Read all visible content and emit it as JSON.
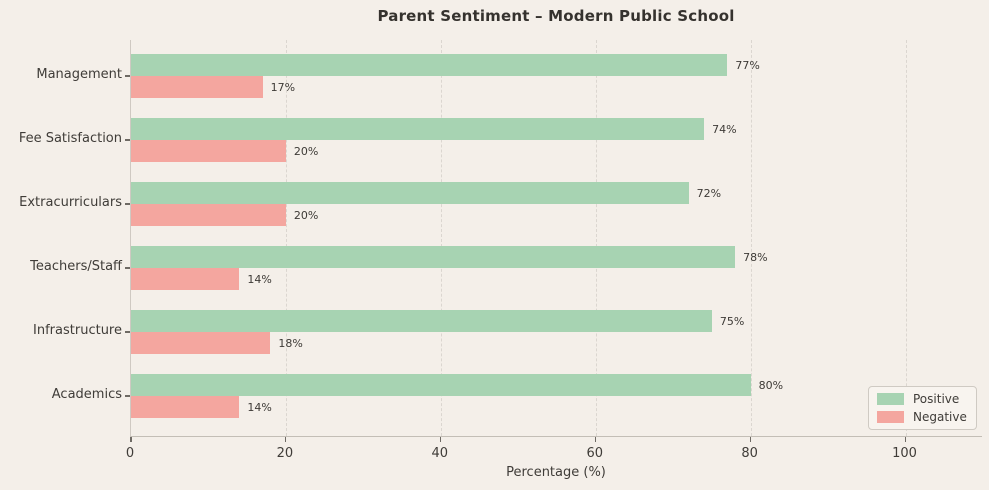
{
  "chart_data": {
    "type": "bar",
    "orientation": "horizontal",
    "title": "Parent Sentiment – Modern Public School",
    "xlabel": "Percentage (%)",
    "categories": [
      "Management",
      "Fee Satisfaction",
      "Extracurriculars",
      "Teachers/Staff",
      "Infrastructure",
      "Academics"
    ],
    "series": [
      {
        "name": "Positive",
        "color": "#a7d3b2",
        "values": [
          77,
          74,
          72,
          78,
          75,
          80
        ]
      },
      {
        "name": "Negative",
        "color": "#f4a69f",
        "values": [
          17,
          20,
          20,
          14,
          18,
          14
        ]
      }
    ],
    "value_label_suffix": "%",
    "x_ticks": [
      0,
      20,
      40,
      60,
      80,
      100
    ],
    "xlim": [
      0,
      110
    ],
    "grid": "vertical-dashed",
    "legend_position": "lower-right"
  },
  "legend": {
    "positive_label": "Positive",
    "negative_label": "Negative"
  },
  "colors": {
    "background": "#f4efe9",
    "positive": "#a7d3b2",
    "negative": "#f4a69f",
    "gridline": "#dbd6d0",
    "axis": "#c3beb6",
    "text": "#3f3c38"
  }
}
